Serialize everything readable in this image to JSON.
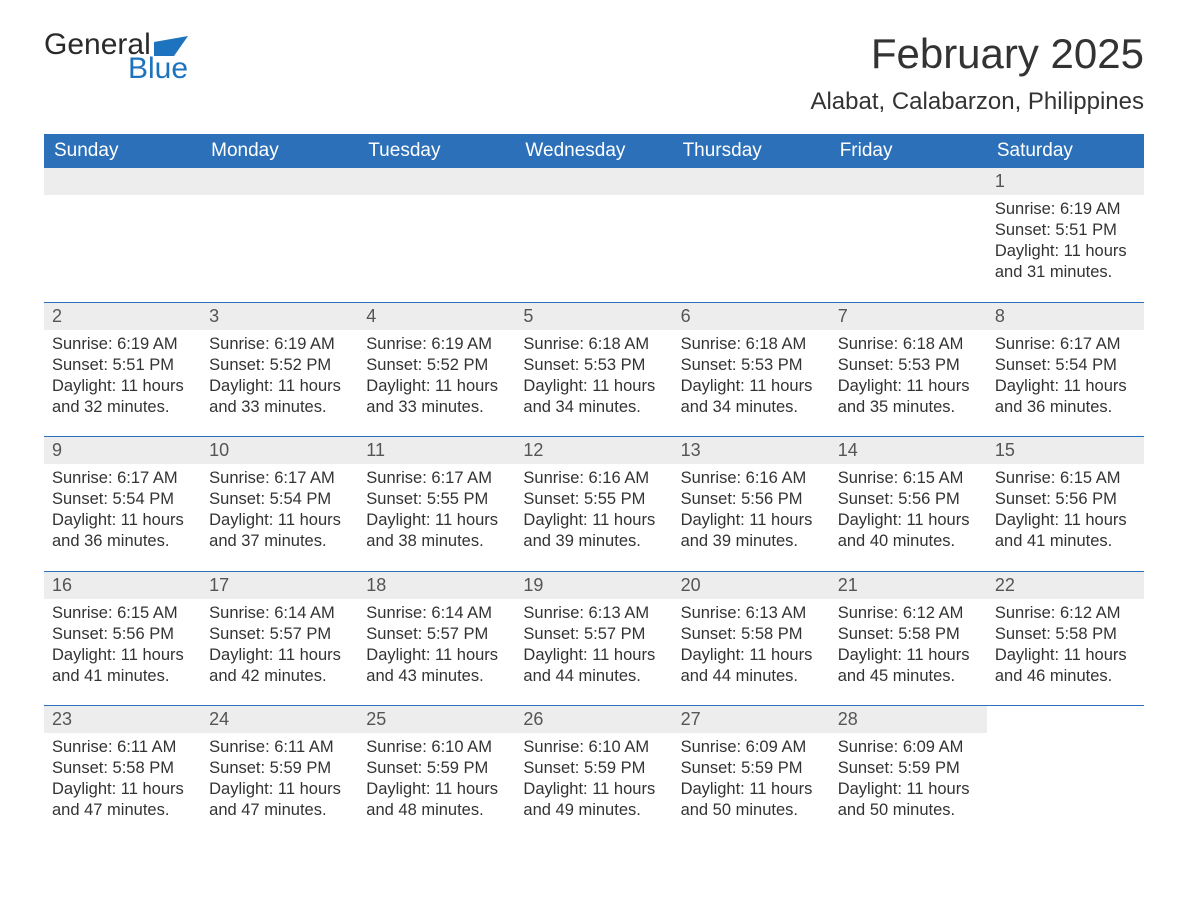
{
  "logo": {
    "word1": "General",
    "word2": "Blue",
    "brand_color": "#1e73be"
  },
  "title": "February 2025",
  "location": "Alabat, Calabarzon, Philippines",
  "colors": {
    "header_bg": "#2b70b8",
    "header_fg": "#ffffff",
    "daynum_bg": "#ededed",
    "text": "#333333",
    "rule": "#2b70b8"
  },
  "typography": {
    "title_fontsize": 42,
    "location_fontsize": 24,
    "weekday_fontsize": 19,
    "daynum_fontsize": 18,
    "body_fontsize": 16.5
  },
  "layout": {
    "columns": 7,
    "rows": 5,
    "first_weekday_index": 6
  },
  "weekdays": [
    "Sunday",
    "Monday",
    "Tuesday",
    "Wednesday",
    "Thursday",
    "Friday",
    "Saturday"
  ],
  "days": [
    {
      "n": 1,
      "sunrise": "6:19 AM",
      "sunset": "5:51 PM",
      "dl_h": 11,
      "dl_m": 31
    },
    {
      "n": 2,
      "sunrise": "6:19 AM",
      "sunset": "5:51 PM",
      "dl_h": 11,
      "dl_m": 32
    },
    {
      "n": 3,
      "sunrise": "6:19 AM",
      "sunset": "5:52 PM",
      "dl_h": 11,
      "dl_m": 33
    },
    {
      "n": 4,
      "sunrise": "6:19 AM",
      "sunset": "5:52 PM",
      "dl_h": 11,
      "dl_m": 33
    },
    {
      "n": 5,
      "sunrise": "6:18 AM",
      "sunset": "5:53 PM",
      "dl_h": 11,
      "dl_m": 34
    },
    {
      "n": 6,
      "sunrise": "6:18 AM",
      "sunset": "5:53 PM",
      "dl_h": 11,
      "dl_m": 34
    },
    {
      "n": 7,
      "sunrise": "6:18 AM",
      "sunset": "5:53 PM",
      "dl_h": 11,
      "dl_m": 35
    },
    {
      "n": 8,
      "sunrise": "6:17 AM",
      "sunset": "5:54 PM",
      "dl_h": 11,
      "dl_m": 36
    },
    {
      "n": 9,
      "sunrise": "6:17 AM",
      "sunset": "5:54 PM",
      "dl_h": 11,
      "dl_m": 36
    },
    {
      "n": 10,
      "sunrise": "6:17 AM",
      "sunset": "5:54 PM",
      "dl_h": 11,
      "dl_m": 37
    },
    {
      "n": 11,
      "sunrise": "6:17 AM",
      "sunset": "5:55 PM",
      "dl_h": 11,
      "dl_m": 38
    },
    {
      "n": 12,
      "sunrise": "6:16 AM",
      "sunset": "5:55 PM",
      "dl_h": 11,
      "dl_m": 39
    },
    {
      "n": 13,
      "sunrise": "6:16 AM",
      "sunset": "5:56 PM",
      "dl_h": 11,
      "dl_m": 39
    },
    {
      "n": 14,
      "sunrise": "6:15 AM",
      "sunset": "5:56 PM",
      "dl_h": 11,
      "dl_m": 40
    },
    {
      "n": 15,
      "sunrise": "6:15 AM",
      "sunset": "5:56 PM",
      "dl_h": 11,
      "dl_m": 41
    },
    {
      "n": 16,
      "sunrise": "6:15 AM",
      "sunset": "5:56 PM",
      "dl_h": 11,
      "dl_m": 41
    },
    {
      "n": 17,
      "sunrise": "6:14 AM",
      "sunset": "5:57 PM",
      "dl_h": 11,
      "dl_m": 42
    },
    {
      "n": 18,
      "sunrise": "6:14 AM",
      "sunset": "5:57 PM",
      "dl_h": 11,
      "dl_m": 43
    },
    {
      "n": 19,
      "sunrise": "6:13 AM",
      "sunset": "5:57 PM",
      "dl_h": 11,
      "dl_m": 44
    },
    {
      "n": 20,
      "sunrise": "6:13 AM",
      "sunset": "5:58 PM",
      "dl_h": 11,
      "dl_m": 44
    },
    {
      "n": 21,
      "sunrise": "6:12 AM",
      "sunset": "5:58 PM",
      "dl_h": 11,
      "dl_m": 45
    },
    {
      "n": 22,
      "sunrise": "6:12 AM",
      "sunset": "5:58 PM",
      "dl_h": 11,
      "dl_m": 46
    },
    {
      "n": 23,
      "sunrise": "6:11 AM",
      "sunset": "5:58 PM",
      "dl_h": 11,
      "dl_m": 47
    },
    {
      "n": 24,
      "sunrise": "6:11 AM",
      "sunset": "5:59 PM",
      "dl_h": 11,
      "dl_m": 47
    },
    {
      "n": 25,
      "sunrise": "6:10 AM",
      "sunset": "5:59 PM",
      "dl_h": 11,
      "dl_m": 48
    },
    {
      "n": 26,
      "sunrise": "6:10 AM",
      "sunset": "5:59 PM",
      "dl_h": 11,
      "dl_m": 49
    },
    {
      "n": 27,
      "sunrise": "6:09 AM",
      "sunset": "5:59 PM",
      "dl_h": 11,
      "dl_m": 50
    },
    {
      "n": 28,
      "sunrise": "6:09 AM",
      "sunset": "5:59 PM",
      "dl_h": 11,
      "dl_m": 50
    }
  ],
  "labels": {
    "sunrise_prefix": "Sunrise: ",
    "sunset_prefix": "Sunset: ",
    "daylight_prefix": "Daylight: ",
    "hours_word": " hours and ",
    "minutes_word": " minutes."
  }
}
